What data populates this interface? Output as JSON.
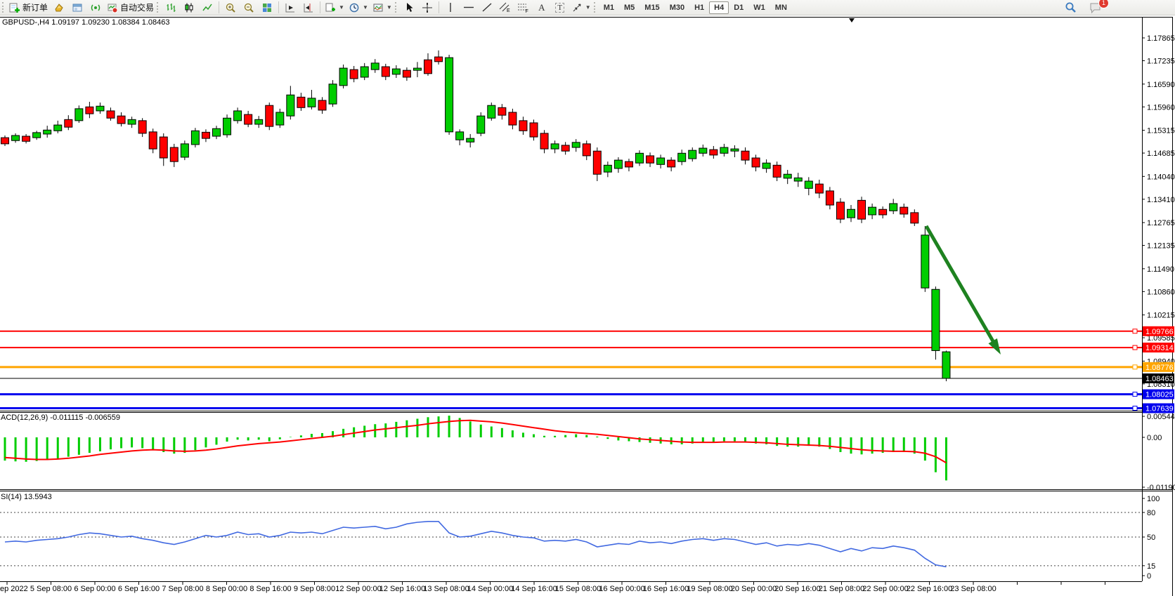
{
  "toolbar": {
    "new_order": "新订单",
    "auto_trading": "自动交易",
    "timeframes": [
      "M1",
      "M5",
      "M15",
      "M30",
      "H1",
      "H4",
      "D1",
      "W1",
      "MN"
    ],
    "active_timeframe": "H4",
    "notification_badge": "1"
  },
  "chart": {
    "title": "GBPUSD-,H4 1.09197 1.09230 1.08384 1.08463",
    "symbol": "GBPUSD-",
    "period": "H4",
    "ohlc": {
      "open": "1.09197",
      "high": "1.09230",
      "low": "1.08384",
      "close": "1.08463"
    },
    "colors": {
      "up_body": "#00CD00",
      "down_body": "#FF0000",
      "outline": "#000000",
      "background": "#FFFFFF",
      "axis": "#000000",
      "arrow": "#1E8220"
    },
    "price_axis_labels": [
      "1.17865",
      "1.17235",
      "1.16590",
      "1.15960",
      "1.15315",
      "1.14685",
      "1.14040",
      "1.13410",
      "1.12765",
      "1.12135",
      "1.11490",
      "1.10860",
      "1.10215",
      "1.09585",
      "1.08940",
      "1.08310"
    ],
    "price_tags": [
      {
        "text": "1.09766",
        "bg": "#FF0000",
        "fg": "#FFFFFF"
      },
      {
        "text": "1.09314",
        "bg": "#FF0000",
        "fg": "#FFFFFF"
      },
      {
        "text": "1.08776",
        "bg": "#FFA500",
        "fg": "#FFFFFF"
      },
      {
        "text": "1.08463",
        "bg": "#000000",
        "fg": "#FFFFFF"
      },
      {
        "text": "1.08025",
        "bg": "#0000EE",
        "fg": "#FFFFFF"
      },
      {
        "text": "1.07639",
        "bg": "#0000EE",
        "fg": "#FFFFFF"
      }
    ],
    "hlines": [
      {
        "price": 1.09766,
        "color": "#FF0000",
        "width": 2,
        "handle": true
      },
      {
        "price": 1.09314,
        "color": "#FF0000",
        "width": 2,
        "handle": true
      },
      {
        "price": 1.08776,
        "color": "#FFA500",
        "width": 3,
        "handle": true
      },
      {
        "price": 1.08463,
        "color": "#000000",
        "width": 1,
        "handle": false
      },
      {
        "price": 1.08025,
        "color": "#0000EE",
        "width": 3,
        "handle": true
      },
      {
        "price": 1.07639,
        "color": "#0000EE",
        "width": 3,
        "handle": true
      }
    ],
    "candles": [
      [
        "r",
        1.1511,
        1.1517,
        1.1488,
        1.1494
      ],
      [
        "g",
        1.1503,
        1.1523,
        1.1497,
        1.1517
      ],
      [
        "r",
        1.1515,
        1.1521,
        1.1495,
        1.1501
      ],
      [
        "g",
        1.1511,
        1.153,
        1.1505,
        1.1525
      ],
      [
        "g",
        1.1521,
        1.1544,
        1.1511,
        1.1532
      ],
      [
        "g",
        1.153,
        1.1558,
        1.1523,
        1.1546
      ],
      [
        "r",
        1.1561,
        1.1573,
        1.1532,
        1.154
      ],
      [
        "g",
        1.1558,
        1.16,
        1.1552,
        1.1591
      ],
      [
        "r",
        1.1596,
        1.161,
        1.1565,
        1.1577
      ],
      [
        "g",
        1.1585,
        1.1608,
        1.1577,
        1.1598
      ],
      [
        "r",
        1.1585,
        1.1594,
        1.1558,
        1.1565
      ],
      [
        "r",
        1.1571,
        1.1581,
        1.1542,
        1.155
      ],
      [
        "g",
        1.1548,
        1.1569,
        1.1538,
        1.1561
      ],
      [
        "r",
        1.1558,
        1.1565,
        1.1513,
        1.1523
      ],
      [
        "r",
        1.1527,
        1.1536,
        1.1468,
        1.148
      ],
      [
        "r",
        1.1513,
        1.1523,
        1.1433,
        1.1455
      ],
      [
        "r",
        1.1484,
        1.1494,
        1.143,
        1.1445
      ],
      [
        "g",
        1.1457,
        1.1503,
        1.1449,
        1.1494
      ],
      [
        "g",
        1.1492,
        1.1538,
        1.1484,
        1.153
      ],
      [
        "r",
        1.1526,
        1.1534,
        1.1499,
        1.1509
      ],
      [
        "g",
        1.1515,
        1.1544,
        1.1507,
        1.1536
      ],
      [
        "g",
        1.1519,
        1.1575,
        1.1511,
        1.1565
      ],
      [
        "g",
        1.1558,
        1.1594,
        1.155,
        1.1585
      ],
      [
        "r",
        1.1575,
        1.1585,
        1.154,
        1.1548
      ],
      [
        "g",
        1.1548,
        1.1571,
        1.1538,
        1.1561
      ],
      [
        "r",
        1.16,
        1.1608,
        1.1532,
        1.1542
      ],
      [
        "g",
        1.1546,
        1.1591,
        1.1538,
        1.1581
      ],
      [
        "g",
        1.1571,
        1.1654,
        1.1561,
        1.1629
      ],
      [
        "r",
        1.1623,
        1.1635,
        1.1585,
        1.1594
      ],
      [
        "g",
        1.1596,
        1.1643,
        1.1589,
        1.162
      ],
      [
        "r",
        1.1614,
        1.1623,
        1.1577,
        1.1587
      ],
      [
        "g",
        1.1604,
        1.167,
        1.1596,
        1.1659
      ],
      [
        "g",
        1.1655,
        1.1713,
        1.1647,
        1.1703
      ],
      [
        "r",
        1.1699,
        1.1709,
        1.1664,
        1.1674
      ],
      [
        "g",
        1.1678,
        1.1717,
        1.167,
        1.1707
      ],
      [
        "g",
        1.1699,
        1.1728,
        1.169,
        1.1717
      ],
      [
        "r",
        1.1707,
        1.1715,
        1.167,
        1.168
      ],
      [
        "g",
        1.1686,
        1.1711,
        1.1676,
        1.1701
      ],
      [
        "r",
        1.1697,
        1.1705,
        1.1668,
        1.1678
      ],
      [
        "g",
        1.1697,
        1.172,
        1.1678,
        1.1703
      ],
      [
        "r",
        1.1726,
        1.1744,
        1.1682,
        1.1688
      ],
      [
        "r",
        1.1734,
        1.1752,
        1.1713,
        1.1721
      ],
      [
        "g",
        1.1732,
        1.174,
        1.1519,
        1.1527
      ],
      [
        "g",
        1.1527,
        1.1534,
        1.149,
        1.1505
      ],
      [
        "g",
        1.1499,
        1.1521,
        1.1484,
        1.1509
      ],
      [
        "g",
        1.1523,
        1.1581,
        1.1515,
        1.1571
      ],
      [
        "g",
        1.1565,
        1.1608,
        1.1558,
        1.16
      ],
      [
        "r",
        1.1594,
        1.1604,
        1.1561,
        1.1573
      ],
      [
        "r",
        1.1581,
        1.1591,
        1.1534,
        1.1546
      ],
      [
        "r",
        1.1558,
        1.1569,
        1.1519,
        1.153
      ],
      [
        "r",
        1.1552,
        1.1561,
        1.1503,
        1.1513
      ],
      [
        "r",
        1.1523,
        1.1532,
        1.1468,
        1.148
      ],
      [
        "g",
        1.148,
        1.1503,
        1.1468,
        1.1494
      ],
      [
        "r",
        1.149,
        1.1499,
        1.1464,
        1.1474
      ],
      [
        "g",
        1.1484,
        1.1507,
        1.1472,
        1.1498
      ],
      [
        "r",
        1.1494,
        1.1503,
        1.1449,
        1.1461
      ],
      [
        "r",
        1.1474,
        1.1484,
        1.1391,
        1.141
      ],
      [
        "g",
        1.1416,
        1.1445,
        1.1402,
        1.1435
      ],
      [
        "g",
        1.1426,
        1.1457,
        1.1414,
        1.1449
      ],
      [
        "r",
        1.1445,
        1.1453,
        1.1418,
        1.143
      ],
      [
        "g",
        1.1441,
        1.1476,
        1.1433,
        1.1468
      ],
      [
        "r",
        1.1461,
        1.147,
        1.143,
        1.1441
      ],
      [
        "g",
        1.1437,
        1.1464,
        1.1426,
        1.1455
      ],
      [
        "r",
        1.1449,
        1.1457,
        1.1418,
        1.143
      ],
      [
        "g",
        1.1445,
        1.1478,
        1.1435,
        1.1468
      ],
      [
        "g",
        1.1453,
        1.1484,
        1.1445,
        1.1476
      ],
      [
        "g",
        1.1468,
        1.1492,
        1.1459,
        1.1482
      ],
      [
        "r",
        1.1478,
        1.1488,
        1.1453,
        1.1463
      ],
      [
        "g",
        1.1468,
        1.1494,
        1.1459,
        1.1484
      ],
      [
        "g",
        1.1474,
        1.149,
        1.1457,
        1.148
      ],
      [
        "r",
        1.1474,
        1.1484,
        1.1437,
        1.1449
      ],
      [
        "r",
        1.1455,
        1.1464,
        1.1418,
        1.143
      ],
      [
        "g",
        1.1426,
        1.1451,
        1.1414,
        1.1441
      ],
      [
        "r",
        1.1435,
        1.1445,
        1.1391,
        1.1402
      ],
      [
        "g",
        1.1399,
        1.1422,
        1.1383,
        1.141
      ],
      [
        "g",
        1.1391,
        1.1414,
        1.1375,
        1.14
      ],
      [
        "g",
        1.1371,
        1.1402,
        1.1352,
        1.1391
      ],
      [
        "r",
        1.1383,
        1.1395,
        1.1344,
        1.1358
      ],
      [
        "r",
        1.1364,
        1.1375,
        1.1313,
        1.1325
      ],
      [
        "r",
        1.1333,
        1.1344,
        1.1275,
        1.1286
      ],
      [
        "g",
        1.129,
        1.1325,
        1.1278,
        1.1313
      ],
      [
        "r",
        1.1338,
        1.1348,
        1.1275,
        1.1286
      ],
      [
        "g",
        1.1298,
        1.1329,
        1.1286,
        1.1319
      ],
      [
        "r",
        1.1313,
        1.1321,
        1.1288,
        1.1298
      ],
      [
        "g",
        1.1309,
        1.1342,
        1.13,
        1.1329
      ],
      [
        "r",
        1.1319,
        1.1329,
        1.129,
        1.13
      ],
      [
        "r",
        1.1304,
        1.1313,
        1.1267,
        1.1275
      ],
      [
        "g",
        1.1242,
        1.1267,
        1.1085,
        1.1096
      ],
      [
        "g",
        1.1092,
        1.11,
        1.0898,
        1.0923
      ],
      [
        "g",
        1.09197,
        1.0923,
        1.08384,
        1.08463
      ]
    ]
  },
  "macd": {
    "label": "ACD(12,26,9) -0.011115 -0.006559",
    "macd_value": "-0.011115",
    "signal_value": "-0.006559",
    "axis_labels": [
      "0.005444",
      "0.00",
      "-0.011903"
    ],
    "histogram_color": "#00CD00",
    "signal_color": "#FF0000",
    "histogram": [
      -0.006,
      -0.0062,
      -0.0063,
      -0.0061,
      -0.0058,
      -0.0055,
      -0.005,
      -0.0045,
      -0.004,
      -0.0036,
      -0.0031,
      -0.0028,
      -0.0026,
      -0.0028,
      -0.0032,
      -0.0038,
      -0.0042,
      -0.004,
      -0.0033,
      -0.0026,
      -0.0019,
      -0.0011,
      -0.0006,
      -0.0008,
      -0.0006,
      -0.001,
      -0.0005,
      0.0001,
      0.0005,
      0.0009,
      0.0011,
      0.0016,
      0.0022,
      0.0026,
      0.003,
      0.0034,
      0.0036,
      0.004,
      0.0044,
      0.0048,
      0.0052,
      0.0054,
      0.0056,
      0.005,
      0.0041,
      0.0033,
      0.0028,
      0.0024,
      0.0018,
      0.0012,
      0.0008,
      0.0004,
      0.0004,
      0.0006,
      0.0008,
      0.0006,
      0.0002,
      -0.0004,
      -0.0008,
      -0.001,
      -0.0012,
      -0.0014,
      -0.0016,
      -0.0018,
      -0.0018,
      -0.0016,
      -0.0014,
      -0.0012,
      -0.001,
      -0.001,
      -0.0012,
      -0.0016,
      -0.0018,
      -0.0022,
      -0.0024,
      -0.0024,
      -0.0022,
      -0.0024,
      -0.003,
      -0.0038,
      -0.0042,
      -0.0044,
      -0.0042,
      -0.004,
      -0.0038,
      -0.0038,
      -0.0042,
      -0.006,
      -0.009,
      -0.011115
    ],
    "signal": [
      -0.0052,
      -0.0054,
      -0.0056,
      -0.0057,
      -0.0057,
      -0.0056,
      -0.0054,
      -0.0051,
      -0.0048,
      -0.0044,
      -0.0041,
      -0.0038,
      -0.0035,
      -0.0033,
      -0.0032,
      -0.0033,
      -0.0035,
      -0.0036,
      -0.0035,
      -0.0033,
      -0.003,
      -0.0026,
      -0.0022,
      -0.0019,
      -0.0016,
      -0.0014,
      -0.0012,
      -0.0009,
      -0.0006,
      -0.0003,
      0.0,
      0.0003,
      0.0007,
      0.0011,
      0.0015,
      0.0019,
      0.0022,
      0.0025,
      0.0028,
      0.0031,
      0.0035,
      0.0038,
      0.0041,
      0.0043,
      0.0044,
      0.0042,
      0.004,
      0.0037,
      0.0033,
      0.0029,
      0.0025,
      0.0021,
      0.0017,
      0.0014,
      0.0012,
      0.001,
      0.0008,
      0.0005,
      0.0002,
      -0.0001,
      -0.0004,
      -0.0006,
      -0.0008,
      -0.001,
      -0.0012,
      -0.0013,
      -0.0013,
      -0.0013,
      -0.0012,
      -0.0012,
      -0.0012,
      -0.0013,
      -0.0014,
      -0.0016,
      -0.0018,
      -0.0019,
      -0.002,
      -0.0021,
      -0.0023,
      -0.0026,
      -0.0029,
      -0.0032,
      -0.0034,
      -0.0035,
      -0.0036,
      -0.0036,
      -0.0037,
      -0.0041,
      -0.005,
      -0.006559
    ]
  },
  "rsi": {
    "label": "SI(14) 13.5943",
    "value": "13.5943",
    "axis_labels": [
      "100",
      "80",
      "50",
      "15",
      "0"
    ],
    "dashed_levels": [
      80,
      50,
      15
    ],
    "line_color": "#4169E1",
    "values": [
      44,
      45,
      44,
      46,
      47,
      48,
      50,
      53,
      55,
      54,
      52,
      50,
      51,
      48,
      46,
      43,
      41,
      44,
      48,
      52,
      50,
      52,
      56,
      53,
      54,
      50,
      52,
      56,
      55,
      56,
      54,
      58,
      62,
      61,
      62,
      63,
      60,
      62,
      66,
      68,
      69,
      69,
      55,
      50,
      51,
      54,
      57,
      55,
      52,
      50,
      49,
      45,
      46,
      45,
      47,
      44,
      38,
      40,
      42,
      41,
      45,
      43,
      44,
      42,
      45,
      47,
      48,
      46,
      48,
      47,
      44,
      41,
      43,
      39,
      41,
      40,
      42,
      40,
      36,
      32,
      36,
      33,
      37,
      36,
      39,
      37,
      34,
      24,
      16,
      13.6
    ]
  },
  "time_axis": {
    "labels": [
      "ep 2022",
      "5 Sep 08:00",
      "6 Sep 00:00",
      "6 Sep 16:00",
      "7 Sep 08:00",
      "8 Sep 00:00",
      "8 Sep 16:00",
      "9 Sep 08:00",
      "12 Sep 00:00",
      "12 Sep 16:00",
      "13 Sep 08:00",
      "14 Sep 00:00",
      "14 Sep 16:00",
      "15 Sep 08:00",
      "16 Sep 00:00",
      "16 Sep 16:00",
      "19 Sep 08:00",
      "20 Sep 00:00",
      "20 Sep 16:00",
      "21 Sep 08:00",
      "22 Sep 00:00",
      "22 Sep 16:00",
      "23 Sep 08:00"
    ]
  }
}
